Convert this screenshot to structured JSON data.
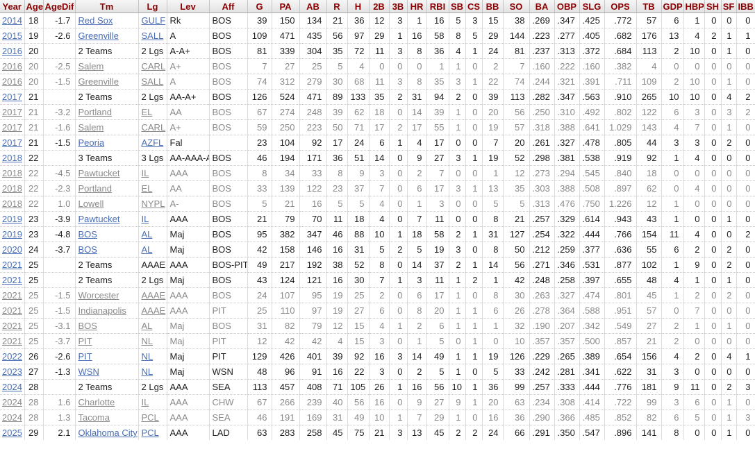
{
  "colors": {
    "header_text": "#8b0000",
    "link_blue": "#4a6eb5",
    "partial_gray": "#8a8a8a",
    "header_bg": "#e9e9e9"
  },
  "table": {
    "columns": [
      "Year",
      "Age",
      "AgeDif",
      "Tm",
      "Lg",
      "Lev",
      "Aff",
      "G",
      "PA",
      "AB",
      "R",
      "H",
      "2B",
      "3B",
      "HR",
      "RBI",
      "SB",
      "CS",
      "BB",
      "SO",
      "BA",
      "OBP",
      "SLG",
      "OPS",
      "TB",
      "GDP",
      "HBP",
      "SH",
      "SF",
      "IBB"
    ],
    "rows": [
      {
        "type": "main",
        "links": [
          0,
          3,
          4
        ],
        "cells": [
          "2014",
          "18",
          "-1.7",
          "Red Sox",
          "GULF",
          "Rk",
          "BOS",
          "39",
          "150",
          "134",
          "21",
          "36",
          "12",
          "3",
          "1",
          "16",
          "5",
          "3",
          "15",
          "38",
          ".269",
          ".347",
          ".425",
          ".772",
          "57",
          "6",
          "1",
          "0",
          "0",
          "0"
        ]
      },
      {
        "type": "main",
        "links": [
          0,
          3,
          4
        ],
        "cells": [
          "2015",
          "19",
          "-2.6",
          "Greenville",
          "SALL",
          "A",
          "BOS",
          "109",
          "471",
          "435",
          "56",
          "97",
          "29",
          "1",
          "16",
          "58",
          "8",
          "5",
          "29",
          "144",
          ".223",
          ".277",
          ".405",
          ".682",
          "176",
          "13",
          "4",
          "2",
          "1",
          "1"
        ]
      },
      {
        "type": "total",
        "links": [
          0
        ],
        "cells": [
          "2016",
          "20",
          "",
          "2 Teams",
          "2 Lgs",
          "A-A+",
          "BOS",
          "81",
          "339",
          "304",
          "35",
          "72",
          "11",
          "3",
          "8",
          "36",
          "4",
          "1",
          "24",
          "81",
          ".237",
          ".313",
          ".372",
          ".684",
          "113",
          "2",
          "10",
          "0",
          "1",
          "0"
        ]
      },
      {
        "type": "partial",
        "links": [
          0,
          3,
          4
        ],
        "cells": [
          "2016",
          "20",
          "-2.5",
          "Salem",
          "CARL",
          "A+",
          "BOS",
          "7",
          "27",
          "25",
          "5",
          "4",
          "0",
          "0",
          "0",
          "1",
          "1",
          "0",
          "2",
          "7",
          ".160",
          ".222",
          ".160",
          ".382",
          "4",
          "0",
          "0",
          "0",
          "0",
          "0"
        ]
      },
      {
        "type": "partial",
        "links": [
          0,
          3,
          4
        ],
        "cells": [
          "2016",
          "20",
          "-1.5",
          "Greenville",
          "SALL",
          "A",
          "BOS",
          "74",
          "312",
          "279",
          "30",
          "68",
          "11",
          "3",
          "8",
          "35",
          "3",
          "1",
          "22",
          "74",
          ".244",
          ".321",
          ".391",
          ".711",
          "109",
          "2",
          "10",
          "0",
          "1",
          "0"
        ]
      },
      {
        "type": "total",
        "links": [
          0
        ],
        "cells": [
          "2017",
          "21",
          "",
          "2 Teams",
          "2 Lgs",
          "AA-A+",
          "BOS",
          "126",
          "524",
          "471",
          "89",
          "133",
          "35",
          "2",
          "31",
          "94",
          "2",
          "0",
          "39",
          "113",
          ".282",
          ".347",
          ".563",
          ".910",
          "265",
          "10",
          "10",
          "0",
          "4",
          "2"
        ]
      },
      {
        "type": "partial",
        "links": [
          0,
          3,
          4
        ],
        "cells": [
          "2017",
          "21",
          "-3.2",
          "Portland",
          "EL",
          "AA",
          "BOS",
          "67",
          "274",
          "248",
          "39",
          "62",
          "18",
          "0",
          "14",
          "39",
          "1",
          "0",
          "20",
          "56",
          ".250",
          ".310",
          ".492",
          ".802",
          "122",
          "6",
          "3",
          "0",
          "3",
          "2"
        ]
      },
      {
        "type": "partial",
        "links": [
          0,
          3,
          4
        ],
        "cells": [
          "2017",
          "21",
          "-1.6",
          "Salem",
          "CARL",
          "A+",
          "BOS",
          "59",
          "250",
          "223",
          "50",
          "71",
          "17",
          "2",
          "17",
          "55",
          "1",
          "0",
          "19",
          "57",
          ".318",
          ".388",
          ".641",
          "1.029",
          "143",
          "4",
          "7",
          "0",
          "1",
          "0"
        ]
      },
      {
        "type": "main",
        "links": [
          0,
          3,
          4
        ],
        "cells": [
          "2017",
          "21",
          "-1.5",
          "Peoria",
          "AZFL",
          "Fal",
          "",
          "23",
          "104",
          "92",
          "17",
          "24",
          "6",
          "1",
          "4",
          "17",
          "0",
          "0",
          "7",
          "20",
          ".261",
          ".327",
          ".478",
          ".805",
          "44",
          "3",
          "3",
          "0",
          "2",
          "0"
        ]
      },
      {
        "type": "total",
        "links": [
          0
        ],
        "cells": [
          "2018",
          "22",
          "",
          "3 Teams",
          "3 Lgs",
          "AA-AAA-A-",
          "BOS",
          "46",
          "194",
          "171",
          "36",
          "51",
          "14",
          "0",
          "9",
          "27",
          "3",
          "1",
          "19",
          "52",
          ".298",
          ".381",
          ".538",
          ".919",
          "92",
          "1",
          "4",
          "0",
          "0",
          "0"
        ]
      },
      {
        "type": "partial",
        "links": [
          0,
          3,
          4
        ],
        "cells": [
          "2018",
          "22",
          "-4.5",
          "Pawtucket",
          "IL",
          "AAA",
          "BOS",
          "8",
          "34",
          "33",
          "8",
          "9",
          "3",
          "0",
          "2",
          "7",
          "0",
          "0",
          "1",
          "12",
          ".273",
          ".294",
          ".545",
          ".840",
          "18",
          "0",
          "0",
          "0",
          "0",
          "0"
        ]
      },
      {
        "type": "partial",
        "links": [
          0,
          3,
          4
        ],
        "cells": [
          "2018",
          "22",
          "-2.3",
          "Portland",
          "EL",
          "AA",
          "BOS",
          "33",
          "139",
          "122",
          "23",
          "37",
          "7",
          "0",
          "6",
          "17",
          "3",
          "1",
          "13",
          "35",
          ".303",
          ".388",
          ".508",
          ".897",
          "62",
          "0",
          "4",
          "0",
          "0",
          "0"
        ]
      },
      {
        "type": "partial",
        "links": [
          0,
          3,
          4
        ],
        "cells": [
          "2018",
          "22",
          "1.0",
          "Lowell",
          "NYPL",
          "A-",
          "BOS",
          "5",
          "21",
          "16",
          "5",
          "5",
          "4",
          "0",
          "1",
          "3",
          "0",
          "0",
          "5",
          "5",
          ".313",
          ".476",
          ".750",
          "1.226",
          "12",
          "1",
          "0",
          "0",
          "0",
          "0"
        ]
      },
      {
        "type": "main",
        "links": [
          0,
          3,
          4
        ],
        "cells": [
          "2019",
          "23",
          "-3.9",
          "Pawtucket",
          "IL",
          "AAA",
          "BOS",
          "21",
          "79",
          "70",
          "11",
          "18",
          "4",
          "0",
          "7",
          "11",
          "0",
          "0",
          "8",
          "21",
          ".257",
          ".329",
          ".614",
          ".943",
          "43",
          "1",
          "0",
          "0",
          "1",
          "0"
        ]
      },
      {
        "type": "main",
        "links": [
          0,
          3,
          4
        ],
        "cells": [
          "2019",
          "23",
          "-4.8",
          "BOS",
          "AL",
          "Maj",
          "BOS",
          "95",
          "382",
          "347",
          "46",
          "88",
          "10",
          "1",
          "18",
          "58",
          "2",
          "1",
          "31",
          "127",
          ".254",
          ".322",
          ".444",
          ".766",
          "154",
          "11",
          "4",
          "0",
          "0",
          "2"
        ]
      },
      {
        "type": "main",
        "links": [
          0,
          3,
          4
        ],
        "cells": [
          "2020",
          "24",
          "-3.7",
          "BOS",
          "AL",
          "Maj",
          "BOS",
          "42",
          "158",
          "146",
          "16",
          "31",
          "5",
          "2",
          "5",
          "19",
          "3",
          "0",
          "8",
          "50",
          ".212",
          ".259",
          ".377",
          ".636",
          "55",
          "6",
          "2",
          "0",
          "2",
          "0"
        ]
      },
      {
        "type": "total",
        "links": [
          0
        ],
        "cells": [
          "2021",
          "25",
          "",
          "2 Teams",
          "AAAE",
          "AAA",
          "BOS-PIT",
          "49",
          "217",
          "192",
          "38",
          "52",
          "8",
          "0",
          "14",
          "37",
          "2",
          "1",
          "14",
          "56",
          ".271",
          ".346",
          ".531",
          ".877",
          "102",
          "1",
          "9",
          "0",
          "2",
          "0"
        ]
      },
      {
        "type": "total",
        "links": [
          0
        ],
        "cells": [
          "2021",
          "25",
          "",
          "2 Teams",
          "2 Lgs",
          "Maj",
          "BOS",
          "43",
          "124",
          "121",
          "16",
          "30",
          "7",
          "1",
          "3",
          "11",
          "1",
          "2",
          "1",
          "42",
          ".248",
          ".258",
          ".397",
          ".655",
          "48",
          "4",
          "1",
          "0",
          "1",
          "0"
        ]
      },
      {
        "type": "partial",
        "links": [
          0,
          3,
          4
        ],
        "cells": [
          "2021",
          "25",
          "-1.5",
          "Worcester",
          "AAAE",
          "AAA",
          "BOS",
          "24",
          "107",
          "95",
          "19",
          "25",
          "2",
          "0",
          "6",
          "17",
          "1",
          "0",
          "8",
          "30",
          ".263",
          ".327",
          ".474",
          ".801",
          "45",
          "1",
          "2",
          "0",
          "2",
          "0"
        ]
      },
      {
        "type": "partial",
        "links": [
          0,
          3,
          4
        ],
        "cells": [
          "2021",
          "25",
          "-1.5",
          "Indianapolis",
          "AAAE",
          "AAA",
          "PIT",
          "25",
          "110",
          "97",
          "19",
          "27",
          "6",
          "0",
          "8",
          "20",
          "1",
          "1",
          "6",
          "26",
          ".278",
          ".364",
          ".588",
          ".951",
          "57",
          "0",
          "7",
          "0",
          "0",
          "0"
        ]
      },
      {
        "type": "partial",
        "links": [
          0,
          3,
          4
        ],
        "cells": [
          "2021",
          "25",
          "-3.1",
          "BOS",
          "AL",
          "Maj",
          "BOS",
          "31",
          "82",
          "79",
          "12",
          "15",
          "4",
          "1",
          "2",
          "6",
          "1",
          "1",
          "1",
          "32",
          ".190",
          ".207",
          ".342",
          ".549",
          "27",
          "2",
          "1",
          "0",
          "1",
          "0"
        ]
      },
      {
        "type": "partial",
        "links": [
          0,
          3,
          4
        ],
        "cells": [
          "2021",
          "25",
          "-3.7",
          "PIT",
          "NL",
          "Maj",
          "PIT",
          "12",
          "42",
          "42",
          "4",
          "15",
          "3",
          "0",
          "1",
          "5",
          "0",
          "1",
          "0",
          "10",
          ".357",
          ".357",
          ".500",
          ".857",
          "21",
          "2",
          "0",
          "0",
          "0",
          "0"
        ]
      },
      {
        "type": "main",
        "links": [
          0,
          3,
          4
        ],
        "cells": [
          "2022",
          "26",
          "-2.6",
          "PIT",
          "NL",
          "Maj",
          "PIT",
          "129",
          "426",
          "401",
          "39",
          "92",
          "16",
          "3",
          "14",
          "49",
          "1",
          "1",
          "19",
          "126",
          ".229",
          ".265",
          ".389",
          ".654",
          "156",
          "4",
          "2",
          "0",
          "4",
          "1"
        ]
      },
      {
        "type": "main",
        "links": [
          0,
          3,
          4
        ],
        "cells": [
          "2023",
          "27",
          "-1.3",
          "WSN",
          "NL",
          "Maj",
          "WSN",
          "48",
          "96",
          "91",
          "16",
          "22",
          "3",
          "0",
          "2",
          "5",
          "1",
          "0",
          "5",
          "33",
          ".242",
          ".281",
          ".341",
          ".622",
          "31",
          "3",
          "0",
          "0",
          "0",
          "0"
        ]
      },
      {
        "type": "total",
        "links": [
          0
        ],
        "cells": [
          "2024",
          "28",
          "",
          "2 Teams",
          "2 Lgs",
          "AAA",
          "SEA",
          "113",
          "457",
          "408",
          "71",
          "105",
          "26",
          "1",
          "16",
          "56",
          "10",
          "1",
          "36",
          "99",
          ".257",
          ".333",
          ".444",
          ".776",
          "181",
          "9",
          "11",
          "0",
          "2",
          "3"
        ]
      },
      {
        "type": "partial",
        "links": [
          0,
          3,
          4
        ],
        "cells": [
          "2024",
          "28",
          "1.6",
          "Charlotte",
          "IL",
          "AAA",
          "CHW",
          "67",
          "266",
          "239",
          "40",
          "56",
          "16",
          "0",
          "9",
          "27",
          "9",
          "1",
          "20",
          "63",
          ".234",
          ".308",
          ".414",
          ".722",
          "99",
          "3",
          "6",
          "0",
          "1",
          "0"
        ]
      },
      {
        "type": "partial",
        "links": [
          0,
          3,
          4
        ],
        "cells": [
          "2024",
          "28",
          "1.3",
          "Tacoma",
          "PCL",
          "AAA",
          "SEA",
          "46",
          "191",
          "169",
          "31",
          "49",
          "10",
          "1",
          "7",
          "29",
          "1",
          "0",
          "16",
          "36",
          ".290",
          ".366",
          ".485",
          ".852",
          "82",
          "6",
          "5",
          "0",
          "1",
          "3"
        ]
      },
      {
        "type": "main",
        "links": [
          0,
          3,
          4
        ],
        "cells": [
          "2025",
          "29",
          "2.1",
          "Oklahoma City",
          "PCL",
          "AAA",
          "LAD",
          "63",
          "283",
          "258",
          "45",
          "75",
          "21",
          "3",
          "13",
          "45",
          "2",
          "2",
          "24",
          "66",
          ".291",
          ".350",
          ".547",
          ".896",
          "141",
          "8",
          "0",
          "0",
          "1",
          "0"
        ]
      }
    ]
  }
}
